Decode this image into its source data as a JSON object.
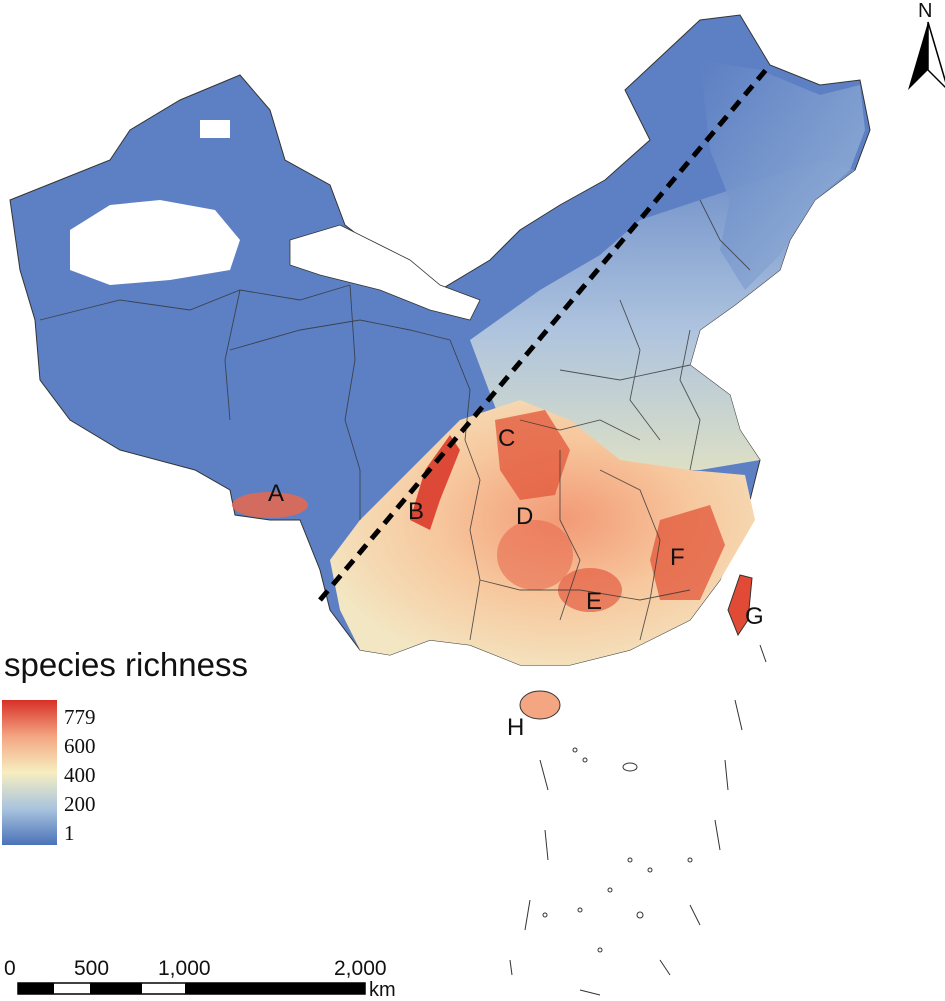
{
  "legend": {
    "title": "species richness",
    "ticks": [
      "779",
      "600",
      "400",
      "200",
      "1"
    ],
    "colors": [
      "#d73027",
      "#f4a582",
      "#f6eec0",
      "#a9c4de",
      "#4a72b8"
    ]
  },
  "scale_bar": {
    "labels": [
      "0",
      "500",
      "1,000",
      "2,000"
    ],
    "unit": "km"
  },
  "north_arrow": {
    "label": "N"
  },
  "regions": [
    "A",
    "B",
    "C",
    "D",
    "E",
    "F",
    "G",
    "H"
  ],
  "colors": {
    "low": "#5b7fc2",
    "mid": "#eceec4",
    "high": "#e24a33",
    "boundary": "#333333",
    "divide_line": "#000000"
  }
}
